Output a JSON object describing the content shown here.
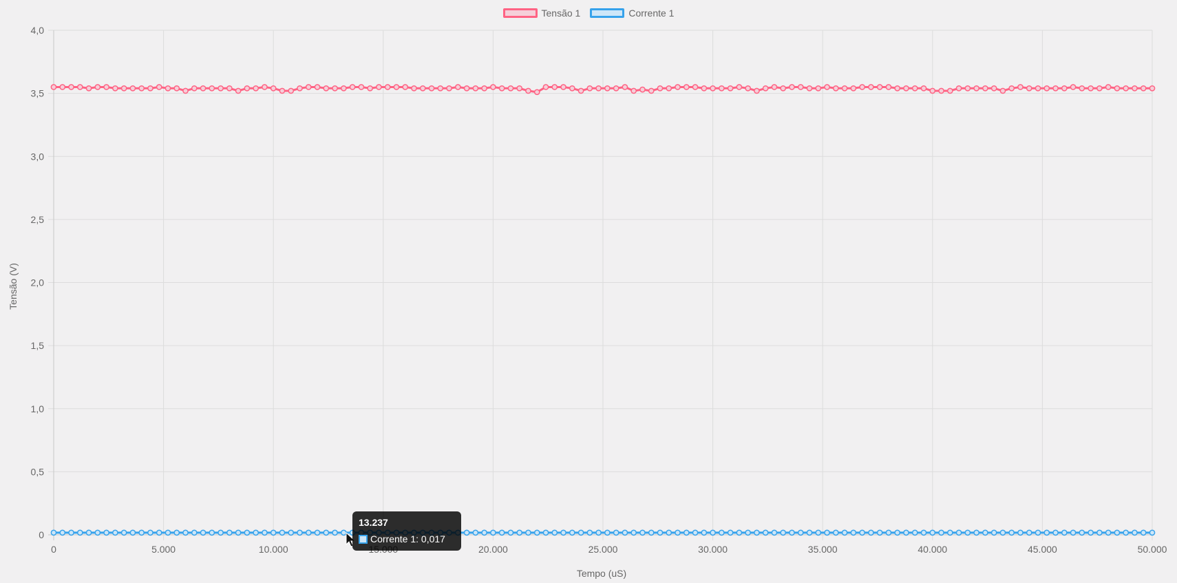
{
  "chart_data": {
    "type": "line",
    "title": "",
    "xlabel": "Tempo (uS)",
    "ylabel": "Tensão (V)",
    "xlim": [
      0,
      50000
    ],
    "ylim": [
      0,
      4.0
    ],
    "x_ticks": [
      "0",
      "5.000",
      "10.000",
      "15.000",
      "20.000",
      "25.000",
      "30.000",
      "35.000",
      "40.000",
      "45.000",
      "50.000"
    ],
    "y_ticks": [
      "0",
      "0,5",
      "1,0",
      "1,5",
      "2,0",
      "2,5",
      "3,0",
      "3,5",
      "4,0"
    ],
    "grid": true,
    "legend_position": "top",
    "series": [
      {
        "name": "Tensão 1",
        "color": "#ff6384",
        "fill": "#f5cfd9",
        "x_start": 0,
        "x_step": 400,
        "values": [
          3.55,
          3.55,
          3.55,
          3.55,
          3.54,
          3.55,
          3.55,
          3.54,
          3.54,
          3.54,
          3.54,
          3.54,
          3.55,
          3.54,
          3.54,
          3.52,
          3.54,
          3.54,
          3.54,
          3.54,
          3.54,
          3.52,
          3.54,
          3.54,
          3.55,
          3.54,
          3.52,
          3.52,
          3.54,
          3.55,
          3.55,
          3.54,
          3.54,
          3.54,
          3.55,
          3.55,
          3.54,
          3.55,
          3.55,
          3.55,
          3.55,
          3.54,
          3.54,
          3.54,
          3.54,
          3.54,
          3.55,
          3.54,
          3.54,
          3.54,
          3.55,
          3.54,
          3.54,
          3.54,
          3.52,
          3.51,
          3.55,
          3.55,
          3.55,
          3.54,
          3.52,
          3.54,
          3.54,
          3.54,
          3.54,
          3.55,
          3.52,
          3.53,
          3.52,
          3.54,
          3.54,
          3.55,
          3.55,
          3.55,
          3.54,
          3.54,
          3.54,
          3.54,
          3.55,
          3.54,
          3.52,
          3.54,
          3.55,
          3.54,
          3.55,
          3.55,
          3.54,
          3.54,
          3.55,
          3.54,
          3.54,
          3.54,
          3.55,
          3.55,
          3.55,
          3.55,
          3.54,
          3.54,
          3.54,
          3.54,
          3.52,
          3.52,
          3.52,
          3.54,
          3.54,
          3.54,
          3.54,
          3.54,
          3.52,
          3.54,
          3.55,
          3.54,
          3.54,
          3.54,
          3.54,
          3.54,
          3.55,
          3.54,
          3.54,
          3.54,
          3.55,
          3.54,
          3.54,
          3.54,
          3.54,
          3.54
        ]
      },
      {
        "name": "Corrente 1",
        "color": "#36a2eb",
        "fill": "#cde6f8",
        "x_start": 0,
        "x_step": 400,
        "constant_value": 0.017,
        "count": 126
      }
    ]
  },
  "tooltip": {
    "title": "13.237",
    "label": "Corrente 1: 0,017"
  }
}
